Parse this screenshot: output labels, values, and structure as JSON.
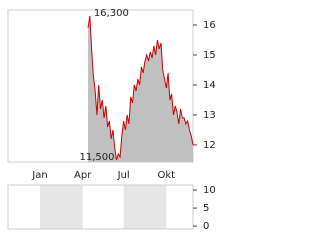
{
  "chart_data": [
    {
      "type": "area",
      "color": "#cc0000",
      "fill": "#c0c0c0",
      "values": [
        15.9,
        16.3,
        15.2,
        14.3,
        13.8,
        13.0,
        14.0,
        13.2,
        13.5,
        12.9,
        13.3,
        12.6,
        12.8,
        12.2,
        12.5,
        11.9,
        11.5,
        11.7,
        11.6,
        12.3,
        12.8,
        12.5,
        13.0,
        12.7,
        13.6,
        13.4,
        14.0,
        13.8,
        14.2,
        14.0,
        14.6,
        14.4,
        14.8,
        15.0,
        14.8,
        15.1,
        14.9,
        15.3,
        15.0,
        15.5,
        15.2,
        15.4,
        14.5,
        14.2,
        13.9,
        14.4,
        13.5,
        13.7,
        13.0,
        13.3,
        13.1,
        12.7,
        13.2,
        12.9,
        12.9,
        12.7,
        12.8,
        12.5,
        12.3,
        12.0
      ],
      "xlim": [
        -45,
        59
      ],
      "xticks": [
        {
          "value": -27,
          "label": "Jan"
        },
        {
          "value": -3,
          "label": "Apr"
        },
        {
          "value": 20,
          "label": "Jul"
        },
        {
          "value": 44,
          "label": "Okt"
        }
      ],
      "ylim": [
        11.43,
        16.5
      ],
      "yticks": [
        12,
        13,
        14,
        15,
        16
      ],
      "annotations": [
        {
          "text": "16,300",
          "x": 1,
          "y": 16.3
        },
        {
          "text": "11,500",
          "x": 16,
          "y": 11.5
        }
      ]
    },
    {
      "type": "volume",
      "band_color": "#e6e6e6",
      "ylim": [
        -0.8,
        11.4
      ],
      "yticks": [
        0,
        5,
        10
      ]
    }
  ]
}
